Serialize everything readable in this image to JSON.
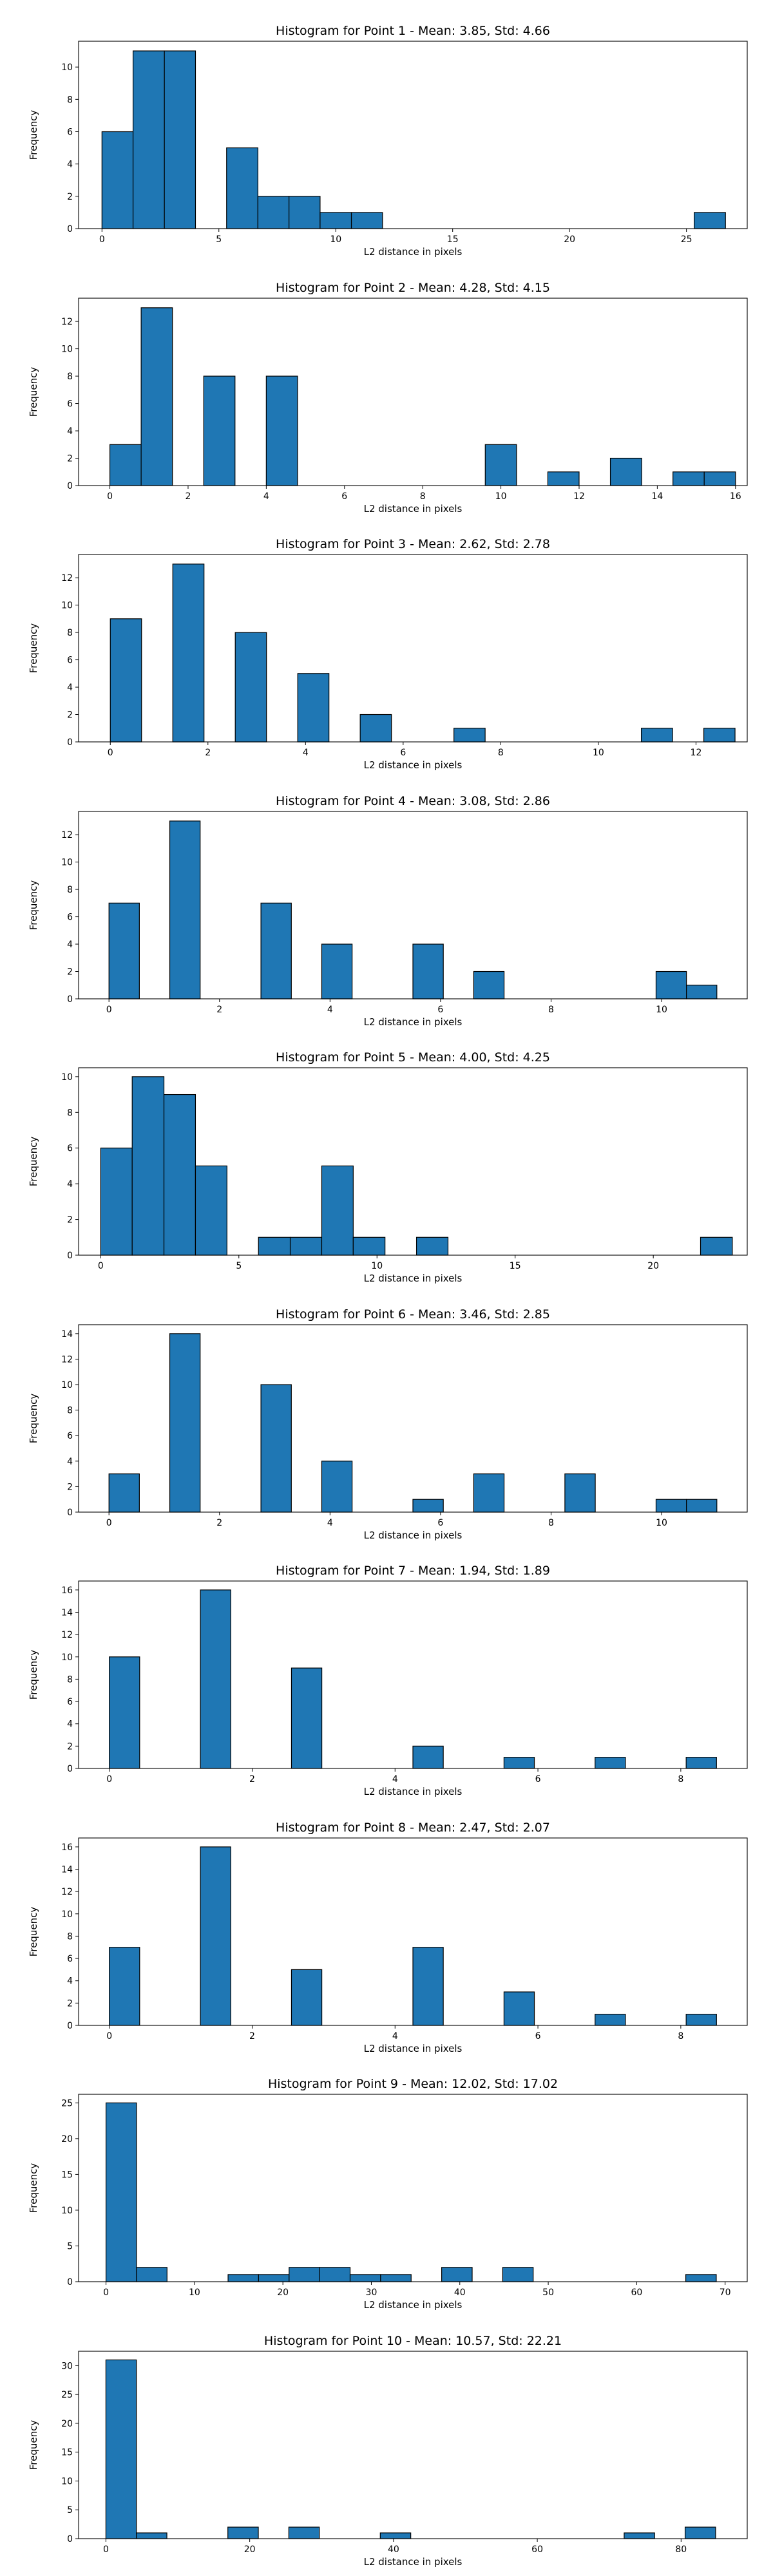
{
  "chart_data": [
    {
      "type": "bar",
      "title": "Histogram for Point 1 - Mean: 3.85, Std: 4.66",
      "xlabel": "L2 distance in pixels",
      "ylabel": "Frequency",
      "xlim": [
        -1,
        27.6
      ],
      "ylim": [
        0,
        11.6
      ],
      "xticks": [
        0,
        5,
        10,
        15,
        20,
        25
      ],
      "yticks": [
        0,
        2,
        4,
        6,
        8,
        10
      ],
      "grid": false,
      "color": "#1f77b4",
      "bins": [
        {
          "x0": 0,
          "x1": 1.33,
          "count": 6
        },
        {
          "x0": 1.33,
          "x1": 2.67,
          "count": 11
        },
        {
          "x0": 2.67,
          "x1": 4.0,
          "count": 11
        },
        {
          "x0": 5.33,
          "x1": 6.67,
          "count": 5
        },
        {
          "x0": 6.67,
          "x1": 8.0,
          "count": 2
        },
        {
          "x0": 8.0,
          "x1": 9.33,
          "count": 2
        },
        {
          "x0": 9.33,
          "x1": 10.67,
          "count": 1
        },
        {
          "x0": 10.67,
          "x1": 12.0,
          "count": 1
        },
        {
          "x0": 25.33,
          "x1": 26.67,
          "count": 1
        }
      ]
    },
    {
      "type": "bar",
      "title": "Histogram for Point 2 - Mean: 4.28, Std: 4.15",
      "xlabel": "L2 distance in pixels",
      "ylabel": "Frequency",
      "xlim": [
        -0.8,
        16.3
      ],
      "ylim": [
        0,
        13.7
      ],
      "xticks": [
        0,
        2,
        4,
        6,
        8,
        10,
        12,
        14,
        16
      ],
      "yticks": [
        0,
        2,
        4,
        6,
        8,
        10,
        12
      ],
      "grid": false,
      "color": "#1f77b4",
      "bins": [
        {
          "x0": 0,
          "x1": 0.8,
          "count": 3
        },
        {
          "x0": 0.8,
          "x1": 1.6,
          "count": 13
        },
        {
          "x0": 2.4,
          "x1": 3.2,
          "count": 8
        },
        {
          "x0": 4.0,
          "x1": 4.8,
          "count": 8
        },
        {
          "x0": 9.6,
          "x1": 10.4,
          "count": 3
        },
        {
          "x0": 11.2,
          "x1": 12.0,
          "count": 1
        },
        {
          "x0": 12.8,
          "x1": 13.6,
          "count": 2
        },
        {
          "x0": 14.4,
          "x1": 15.2,
          "count": 1
        },
        {
          "x0": 15.2,
          "x1": 16.0,
          "count": 1
        }
      ]
    },
    {
      "type": "bar",
      "title": "Histogram for Point 3 - Mean: 2.62, Std: 2.78",
      "xlabel": "L2 distance in pixels",
      "ylabel": "Frequency",
      "xlim": [
        -0.65,
        13.05
      ],
      "ylim": [
        0,
        13.7
      ],
      "xticks": [
        0,
        2,
        4,
        6,
        8,
        10,
        12
      ],
      "yticks": [
        0,
        2,
        4,
        6,
        8,
        10,
        12
      ],
      "grid": false,
      "color": "#1f77b4",
      "bins": [
        {
          "x0": 0,
          "x1": 0.64,
          "count": 9
        },
        {
          "x0": 1.28,
          "x1": 1.92,
          "count": 13
        },
        {
          "x0": 2.56,
          "x1": 3.2,
          "count": 8
        },
        {
          "x0": 3.84,
          "x1": 4.48,
          "count": 5
        },
        {
          "x0": 5.12,
          "x1": 5.76,
          "count": 2
        },
        {
          "x0": 7.04,
          "x1": 7.68,
          "count": 1
        },
        {
          "x0": 10.88,
          "x1": 11.52,
          "count": 1
        },
        {
          "x0": 12.16,
          "x1": 12.8,
          "count": 1
        }
      ]
    },
    {
      "type": "bar",
      "title": "Histogram for Point 4 - Mean: 3.08, Std: 2.86",
      "xlabel": "L2 distance in pixels",
      "ylabel": "Frequency",
      "xlim": [
        -0.55,
        11.55
      ],
      "ylim": [
        0,
        13.7
      ],
      "xticks": [
        0,
        2,
        4,
        6,
        8,
        10
      ],
      "yticks": [
        0,
        2,
        4,
        6,
        8,
        10,
        12
      ],
      "grid": false,
      "color": "#1f77b4",
      "bins": [
        {
          "x0": 0,
          "x1": 0.55,
          "count": 7
        },
        {
          "x0": 1.1,
          "x1": 1.65,
          "count": 13
        },
        {
          "x0": 2.75,
          "x1": 3.3,
          "count": 7
        },
        {
          "x0": 3.85,
          "x1": 4.4,
          "count": 4
        },
        {
          "x0": 5.5,
          "x1": 6.05,
          "count": 4
        },
        {
          "x0": 6.6,
          "x1": 7.15,
          "count": 2
        },
        {
          "x0": 9.9,
          "x1": 10.45,
          "count": 2
        },
        {
          "x0": 10.45,
          "x1": 11.0,
          "count": 1
        }
      ]
    },
    {
      "type": "bar",
      "title": "Histogram for Point 5 - Mean: 4.00, Std: 4.25",
      "xlabel": "L2 distance in pixels",
      "ylabel": "Frequency",
      "xlim": [
        -0.8,
        23.4
      ],
      "ylim": [
        0,
        10.5
      ],
      "xticks": [
        0,
        5,
        10,
        15,
        20
      ],
      "yticks": [
        0,
        2,
        4,
        6,
        8,
        10
      ],
      "grid": false,
      "color": "#1f77b4",
      "bins": [
        {
          "x0": 0,
          "x1": 1.14,
          "count": 6
        },
        {
          "x0": 1.14,
          "x1": 2.29,
          "count": 10
        },
        {
          "x0": 2.29,
          "x1": 3.43,
          "count": 9
        },
        {
          "x0": 3.43,
          "x1": 4.57,
          "count": 5
        },
        {
          "x0": 5.71,
          "x1": 6.86,
          "count": 1
        },
        {
          "x0": 6.86,
          "x1": 8.0,
          "count": 1
        },
        {
          "x0": 8.0,
          "x1": 9.14,
          "count": 5
        },
        {
          "x0": 9.14,
          "x1": 10.29,
          "count": 1
        },
        {
          "x0": 11.43,
          "x1": 12.57,
          "count": 1
        },
        {
          "x0": 21.71,
          "x1": 22.86,
          "count": 1
        }
      ]
    },
    {
      "type": "bar",
      "title": "Histogram for Point 6 - Mean: 3.46, Std: 2.85",
      "xlabel": "L2 distance in pixels",
      "ylabel": "Frequency",
      "xlim": [
        -0.55,
        11.55
      ],
      "ylim": [
        0,
        14.7
      ],
      "xticks": [
        0,
        2,
        4,
        6,
        8,
        10
      ],
      "yticks": [
        0,
        2,
        4,
        6,
        8,
        10,
        12,
        14
      ],
      "grid": false,
      "color": "#1f77b4",
      "bins": [
        {
          "x0": 0,
          "x1": 0.55,
          "count": 3
        },
        {
          "x0": 1.1,
          "x1": 1.65,
          "count": 14
        },
        {
          "x0": 2.75,
          "x1": 3.3,
          "count": 10
        },
        {
          "x0": 3.85,
          "x1": 4.4,
          "count": 4
        },
        {
          "x0": 5.5,
          "x1": 6.05,
          "count": 1
        },
        {
          "x0": 6.6,
          "x1": 7.15,
          "count": 3
        },
        {
          "x0": 8.25,
          "x1": 8.8,
          "count": 3
        },
        {
          "x0": 9.9,
          "x1": 10.45,
          "count": 1
        },
        {
          "x0": 10.45,
          "x1": 11.0,
          "count": 1
        }
      ]
    },
    {
      "type": "bar",
      "title": "Histogram for Point 7 - Mean: 1.94, Std: 1.89",
      "xlabel": "L2 distance in pixels",
      "ylabel": "Frequency",
      "xlim": [
        -0.43,
        8.93
      ],
      "ylim": [
        0,
        16.8
      ],
      "xticks": [
        0,
        2,
        4,
        6,
        8
      ],
      "yticks": [
        0,
        2,
        4,
        6,
        8,
        10,
        12,
        14,
        16
      ],
      "grid": false,
      "color": "#1f77b4",
      "bins": [
        {
          "x0": 0,
          "x1": 0.425,
          "count": 10
        },
        {
          "x0": 1.275,
          "x1": 1.7,
          "count": 16
        },
        {
          "x0": 2.55,
          "x1": 2.975,
          "count": 9
        },
        {
          "x0": 4.25,
          "x1": 4.675,
          "count": 2
        },
        {
          "x0": 5.525,
          "x1": 5.95,
          "count": 1
        },
        {
          "x0": 6.8,
          "x1": 7.225,
          "count": 1
        },
        {
          "x0": 8.075,
          "x1": 8.5,
          "count": 1
        }
      ]
    },
    {
      "type": "bar",
      "title": "Histogram for Point 8 - Mean: 2.47, Std: 2.07",
      "xlabel": "L2 distance in pixels",
      "ylabel": "Frequency",
      "xlim": [
        -0.43,
        8.93
      ],
      "ylim": [
        0,
        16.8
      ],
      "xticks": [
        0,
        2,
        4,
        6,
        8
      ],
      "yticks": [
        0,
        2,
        4,
        6,
        8,
        10,
        12,
        14,
        16
      ],
      "grid": false,
      "color": "#1f77b4",
      "bins": [
        {
          "x0": 0,
          "x1": 0.425,
          "count": 7
        },
        {
          "x0": 1.275,
          "x1": 1.7,
          "count": 16
        },
        {
          "x0": 2.55,
          "x1": 2.975,
          "count": 5
        },
        {
          "x0": 4.25,
          "x1": 4.675,
          "count": 7
        },
        {
          "x0": 5.525,
          "x1": 5.95,
          "count": 3
        },
        {
          "x0": 6.8,
          "x1": 7.225,
          "count": 1
        },
        {
          "x0": 8.075,
          "x1": 8.5,
          "count": 1
        }
      ]
    },
    {
      "type": "bar",
      "title": "Histogram for Point 9 - Mean: 12.02, Std: 17.02",
      "xlabel": "L2 distance in pixels",
      "ylabel": "Frequency",
      "xlim": [
        -3.1,
        72.5
      ],
      "ylim": [
        0,
        26.2
      ],
      "xticks": [
        0,
        10,
        20,
        30,
        40,
        50,
        60,
        70
      ],
      "yticks": [
        0,
        5,
        10,
        15,
        20,
        25
      ],
      "grid": false,
      "color": "#1f77b4",
      "bins": [
        {
          "x0": 0,
          "x1": 3.45,
          "count": 25
        },
        {
          "x0": 3.45,
          "x1": 6.9,
          "count": 2
        },
        {
          "x0": 13.8,
          "x1": 17.25,
          "count": 1
        },
        {
          "x0": 17.25,
          "x1": 20.7,
          "count": 1
        },
        {
          "x0": 20.7,
          "x1": 24.15,
          "count": 2
        },
        {
          "x0": 24.15,
          "x1": 27.6,
          "count": 2
        },
        {
          "x0": 27.6,
          "x1": 31.05,
          "count": 1
        },
        {
          "x0": 31.05,
          "x1": 34.5,
          "count": 1
        },
        {
          "x0": 37.95,
          "x1": 41.4,
          "count": 2
        },
        {
          "x0": 44.85,
          "x1": 48.3,
          "count": 2
        },
        {
          "x0": 65.55,
          "x1": 69.0,
          "count": 1
        }
      ]
    },
    {
      "type": "bar",
      "title": "Histogram for Point 10 - Mean: 10.57, Std: 22.21",
      "xlabel": "L2 distance in pixels",
      "ylabel": "Frequency",
      "xlim": [
        -3.8,
        89.2
      ],
      "ylim": [
        0,
        32.5
      ],
      "xticks": [
        0,
        20,
        40,
        60,
        80
      ],
      "yticks": [
        0,
        5,
        10,
        15,
        20,
        25,
        30
      ],
      "grid": false,
      "color": "#1f77b4",
      "bins": [
        {
          "x0": 0,
          "x1": 4.24,
          "count": 31
        },
        {
          "x0": 4.24,
          "x1": 8.48,
          "count": 1
        },
        {
          "x0": 16.96,
          "x1": 21.2,
          "count": 2
        },
        {
          "x0": 25.44,
          "x1": 29.68,
          "count": 2
        },
        {
          "x0": 38.16,
          "x1": 42.4,
          "count": 1
        },
        {
          "x0": 72.08,
          "x1": 76.32,
          "count": 1
        },
        {
          "x0": 80.56,
          "x1": 84.8,
          "count": 2
        }
      ]
    }
  ]
}
